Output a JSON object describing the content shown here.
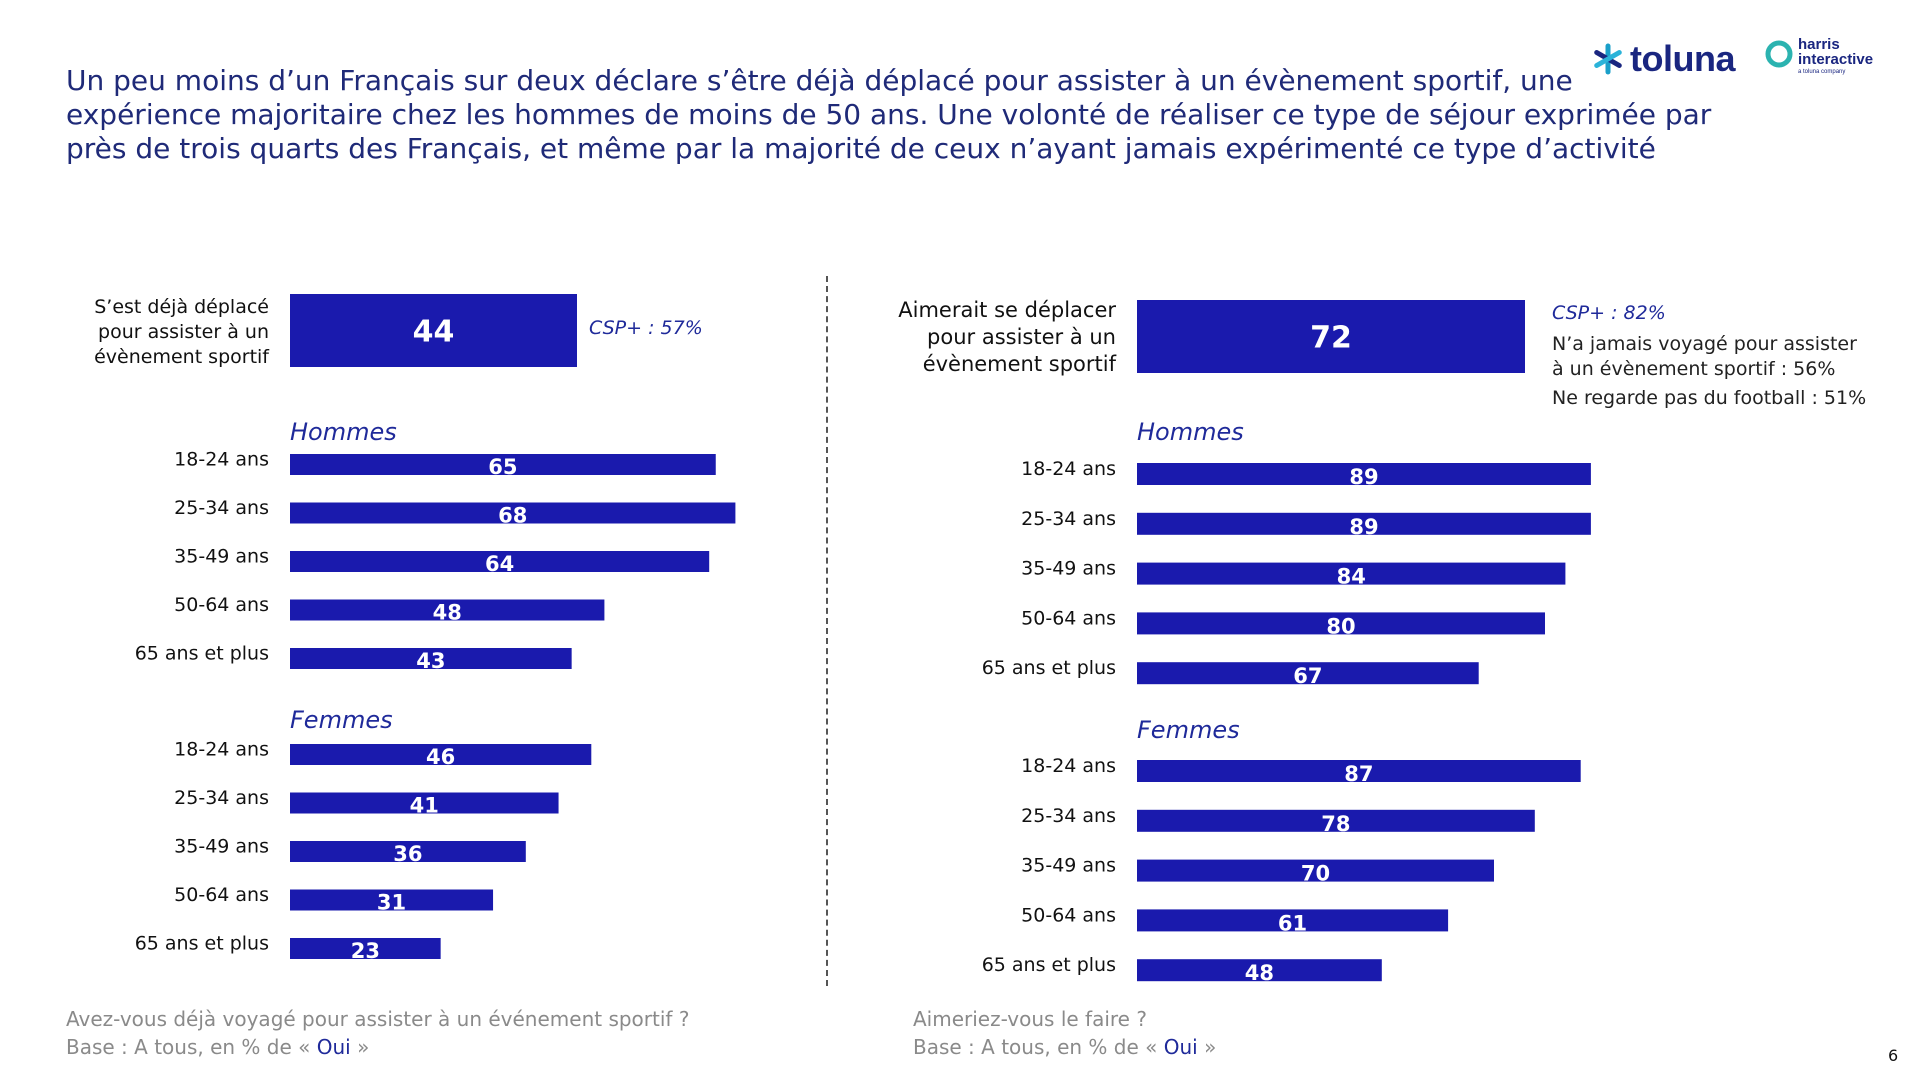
{
  "headline": [
    "Un peu moins d’un Français sur deux déclare s’être déjà déplacé pour assister à un évènement sportif, une",
    "expérience majoritaire chez les hommes de moins de 50 ans. Une volonté de réaliser ce type de séjour exprimée par",
    "près de trois quarts des Français, et même par la majorité de ceux n’ayant jamais expérimenté ce type d’activité"
  ],
  "logos": {
    "toluna": "toluna",
    "harris_line1": "harris",
    "harris_line2": "interactive",
    "harris_tagline": "a toluna company"
  },
  "colors": {
    "bar": "#1a1aad",
    "headline": "#1f2a78",
    "note_text": "#1f2a9a",
    "footnote": "#8a8a8a"
  },
  "chart_data": [
    {
      "type": "bar",
      "orientation": "horizontal",
      "total": {
        "label_lines": [
          "S’est déjà déplacé",
          "pour assister à un",
          "évènement sportif"
        ],
        "value": 44
      },
      "notes": [
        "CSP+ : 57%"
      ],
      "groups": [
        {
          "name": "Hommes",
          "categories": [
            "18-24 ans",
            "25-34 ans",
            "35-49 ans",
            "50-64 ans",
            "65 ans et plus"
          ],
          "values": [
            65,
            68,
            64,
            48,
            43
          ]
        },
        {
          "name": "Femmes",
          "categories": [
            "18-24 ans",
            "25-34 ans",
            "35-49 ans",
            "50-64 ans",
            "65 ans et plus"
          ],
          "values": [
            46,
            41,
            36,
            31,
            23
          ]
        }
      ],
      "xlim": [
        0,
        100
      ],
      "footnote": {
        "question": "Avez-vous déjà voyagé pour assister à un événement sportif ?",
        "base_prefix": "Base : A tous, en % de «",
        "base_highlight": "Oui",
        "base_suffix": "»"
      }
    },
    {
      "type": "bar",
      "orientation": "horizontal",
      "total": {
        "label_lines": [
          "Aimerait se déplacer",
          "pour assister à un",
          "évènement sportif"
        ],
        "value": 72
      },
      "notes": [
        "CSP+ : 82%",
        "N’a jamais voyagé pour assister",
        "à un évènement sportif : 56%",
        "Ne regarde pas du football : 51%"
      ],
      "groups": [
        {
          "name": "Hommes",
          "categories": [
            "18-24 ans",
            "25-34 ans",
            "35-49 ans",
            "50-64 ans",
            "65 ans et plus"
          ],
          "values": [
            89,
            89,
            84,
            80,
            67
          ]
        },
        {
          "name": "Femmes",
          "categories": [
            "18-24 ans",
            "25-34 ans",
            "35-49 ans",
            "50-64 ans",
            "65 ans et plus"
          ],
          "values": [
            87,
            78,
            70,
            61,
            48
          ]
        }
      ],
      "xlim": [
        0,
        100
      ],
      "footnote": {
        "question": "Aimeriez-vous le faire ?",
        "base_prefix": "Base : A tous, en % de «",
        "base_highlight": "Oui",
        "base_suffix": "»"
      }
    }
  ],
  "page_number": "6"
}
